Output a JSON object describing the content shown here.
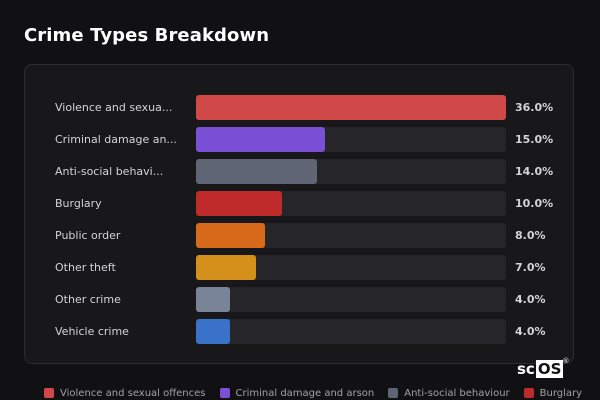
{
  "title": "Crime Types Breakdown",
  "logo": {
    "text_a": "sc",
    "text_b": "OS",
    "mark": "®"
  },
  "chart_data": {
    "type": "bar",
    "orientation": "horizontal",
    "title": "Crime Types Breakdown",
    "categories": [
      "Violence and sexual offences",
      "Criminal damage and arson",
      "Anti-social behaviour",
      "Burglary",
      "Public order",
      "Other theft",
      "Other crime",
      "Vehicle crime"
    ],
    "display_labels": [
      "Violence and sexua...",
      "Criminal damage an...",
      "Anti-social behavi...",
      "Burglary",
      "Public order",
      "Other theft",
      "Other crime",
      "Vehicle crime"
    ],
    "values": [
      36.0,
      15.0,
      14.0,
      10.0,
      8.0,
      7.0,
      4.0,
      4.0
    ],
    "value_labels": [
      "36.0%",
      "15.0%",
      "14.0%",
      "10.0%",
      "8.0%",
      "7.0%",
      "4.0%",
      "4.0%"
    ],
    "colors": [
      "#d04848",
      "#7b4fd6",
      "#5f6575",
      "#bf2a2a",
      "#d86a1c",
      "#d4901a",
      "#7a8499",
      "#3a72c9"
    ],
    "xlim": [
      0,
      36
    ],
    "legend": {
      "placement": "bottom",
      "entries": [
        {
          "label": "Violence and sexual offences",
          "color": "#d04848"
        },
        {
          "label": "Criminal damage and arson",
          "color": "#7b4fd6"
        },
        {
          "label": "Anti-social behaviour",
          "color": "#5f6575"
        },
        {
          "label": "Burglary",
          "color": "#bf2a2a"
        }
      ]
    }
  }
}
